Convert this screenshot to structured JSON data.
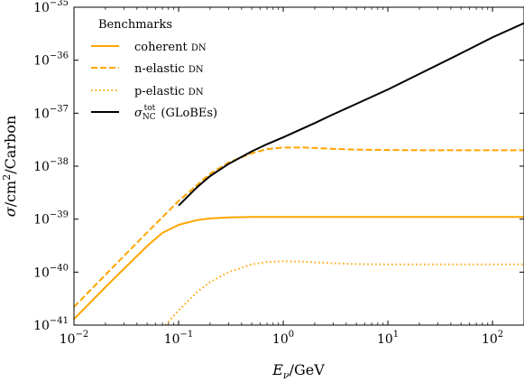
{
  "chart_data": {
    "type": "line",
    "title": "",
    "xlabel": "E_ν/GeV",
    "ylabel": "σ/cm²/Carbon",
    "x_scale": "log",
    "y_scale": "log",
    "xlim": [
      0.01,
      200
    ],
    "ylim": [
      1e-41,
      1e-35
    ],
    "x_ticks": [
      {
        "value": 0.01,
        "base": "10",
        "exp": "−2"
      },
      {
        "value": 0.1,
        "base": "10",
        "exp": "−1"
      },
      {
        "value": 1,
        "base": "10",
        "exp": "0"
      },
      {
        "value": 10,
        "base": "10",
        "exp": "1"
      },
      {
        "value": 100,
        "base": "10",
        "exp": "2"
      }
    ],
    "y_ticks": [
      {
        "value": 1e-41,
        "base": "10",
        "exp": "−41"
      },
      {
        "value": 1e-40,
        "base": "10",
        "exp": "−40"
      },
      {
        "value": 1e-39,
        "base": "10",
        "exp": "−39"
      },
      {
        "value": 1e-38,
        "base": "10",
        "exp": "−38"
      },
      {
        "value": 1e-37,
        "base": "10",
        "exp": "−37"
      },
      {
        "value": 1e-36,
        "base": "10",
        "exp": "−36"
      },
      {
        "value": 1e-35,
        "base": "10",
        "exp": "−35"
      }
    ],
    "grid": false,
    "legend": {
      "position": "top-left",
      "title": "Benchmarks",
      "entries": [
        {
          "label": "coherent DN",
          "series": 0
        },
        {
          "label": "n-elastic DN",
          "series": 1
        },
        {
          "label": "p-elastic DN",
          "series": 2
        },
        {
          "label": "σ_NC^tot (GLoBEs)",
          "series": 3
        }
      ]
    },
    "series": [
      {
        "name": "coherent DN",
        "color": "#FFA500",
        "style": "solid",
        "x": [
          0.01,
          0.02,
          0.03,
          0.05,
          0.07,
          0.1,
          0.15,
          0.2,
          0.3,
          0.5,
          0.7,
          1,
          2,
          5,
          10,
          50,
          100,
          200
        ],
        "y": [
          1.3e-41,
          5.2e-41,
          1.15e-40,
          3.1e-40,
          5.5e-40,
          7.8e-40,
          9.6e-40,
          1.03e-39,
          1.08e-39,
          1.1e-39,
          1.1e-39,
          1.1e-39,
          1.1e-39,
          1.1e-39,
          1.1e-39,
          1.1e-39,
          1.1e-39,
          1.1e-39
        ]
      },
      {
        "name": "n-elastic DN",
        "color": "#FFA500",
        "style": "dashed",
        "x": [
          0.01,
          0.02,
          0.05,
          0.1,
          0.2,
          0.3,
          0.5,
          0.7,
          1,
          1.5,
          2,
          3,
          5,
          10,
          20,
          50,
          100,
          200
        ],
        "y": [
          2.2e-41,
          8.9e-41,
          5.6e-40,
          2.2e-39,
          7.2e-39,
          1.17e-38,
          1.75e-38,
          2.1e-38,
          2.25e-38,
          2.25e-38,
          2.2e-38,
          2.12e-38,
          2.05e-38,
          2.02e-38,
          2e-38,
          2e-38,
          2e-38,
          2e-38
        ]
      },
      {
        "name": "p-elastic DN",
        "color": "#FFA500",
        "style": "dotted",
        "x": [
          0.075,
          0.1,
          0.15,
          0.2,
          0.3,
          0.5,
          0.7,
          1,
          1.5,
          2,
          3,
          5,
          10,
          20,
          50,
          100,
          200
        ],
        "y": [
          1e-41,
          1.9e-41,
          4.2e-41,
          6.5e-41,
          1e-40,
          1.4e-40,
          1.55e-40,
          1.6e-40,
          1.58e-40,
          1.53e-40,
          1.47e-40,
          1.42e-40,
          1.4e-40,
          1.4e-40,
          1.4e-40,
          1.4e-40,
          1.4e-40
        ]
      },
      {
        "name": "σ_NC^tot (GLoBEs)",
        "color": "#000000",
        "style": "solid",
        "x": [
          0.1,
          0.15,
          0.2,
          0.3,
          0.5,
          0.7,
          1,
          2,
          3,
          5,
          10,
          20,
          50,
          100,
          200
        ],
        "y": [
          1.8e-39,
          4e-39,
          6.5e-39,
          1.1e-38,
          1.9e-38,
          2.6e-38,
          3.5e-38,
          6.5e-38,
          9.5e-38,
          1.5e-37,
          2.8e-37,
          5.5e-37,
          1.35e-36,
          2.7e-36,
          5e-36
        ]
      }
    ]
  }
}
